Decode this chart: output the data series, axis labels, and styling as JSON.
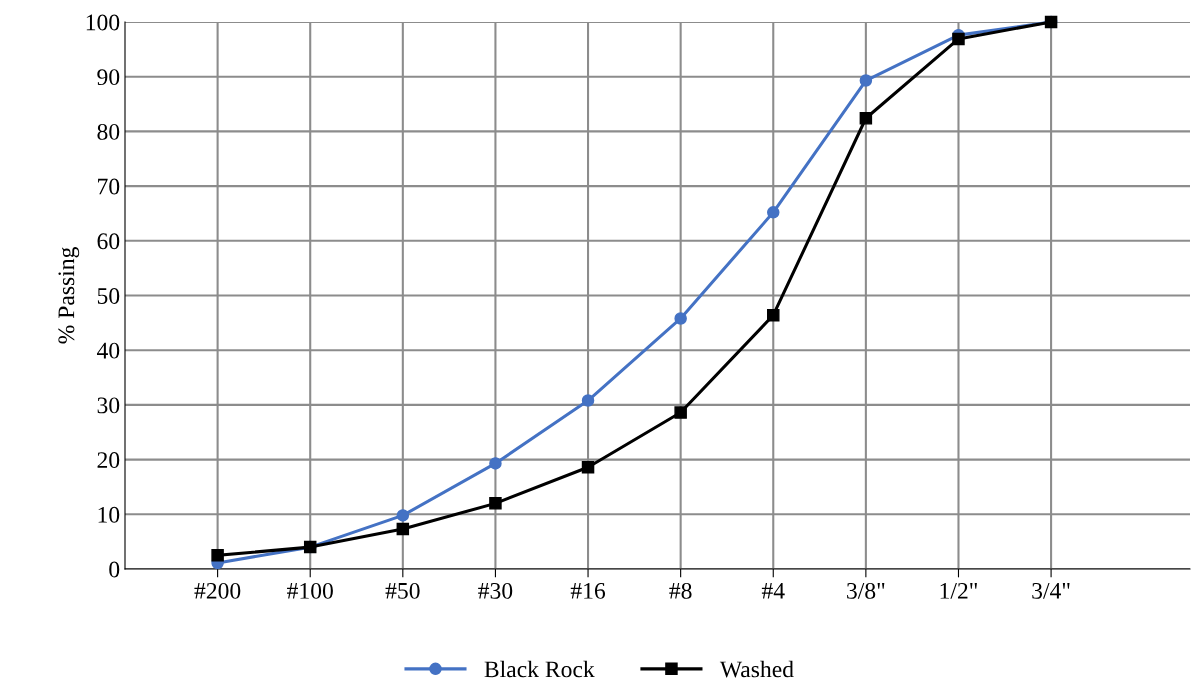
{
  "chart_data": {
    "type": "line",
    "ylabel": "% Passing",
    "categories": [
      "#200",
      "#100",
      "#50",
      "#30",
      "#16",
      "#8",
      "#4",
      "3/8\"",
      "1/2\"",
      "3/4\""
    ],
    "series": [
      {
        "name": "Black Rock",
        "color": "#4472c4",
        "marker": "circle",
        "values": [
          1.1,
          4.0,
          9.8,
          19.3,
          30.8,
          45.8,
          65.2,
          89.3,
          97.6,
          100
        ]
      },
      {
        "name": "Washed",
        "color": "#000000",
        "marker": "square",
        "values": [
          2.5,
          4.0,
          7.3,
          12.0,
          18.6,
          28.6,
          46.4,
          82.4,
          96.9,
          100
        ]
      }
    ],
    "ylim": [
      0,
      100
    ],
    "yticks": [
      0,
      10,
      20,
      30,
      40,
      50,
      60,
      70,
      80,
      90,
      100
    ],
    "grid": true,
    "legend": "bottom"
  }
}
